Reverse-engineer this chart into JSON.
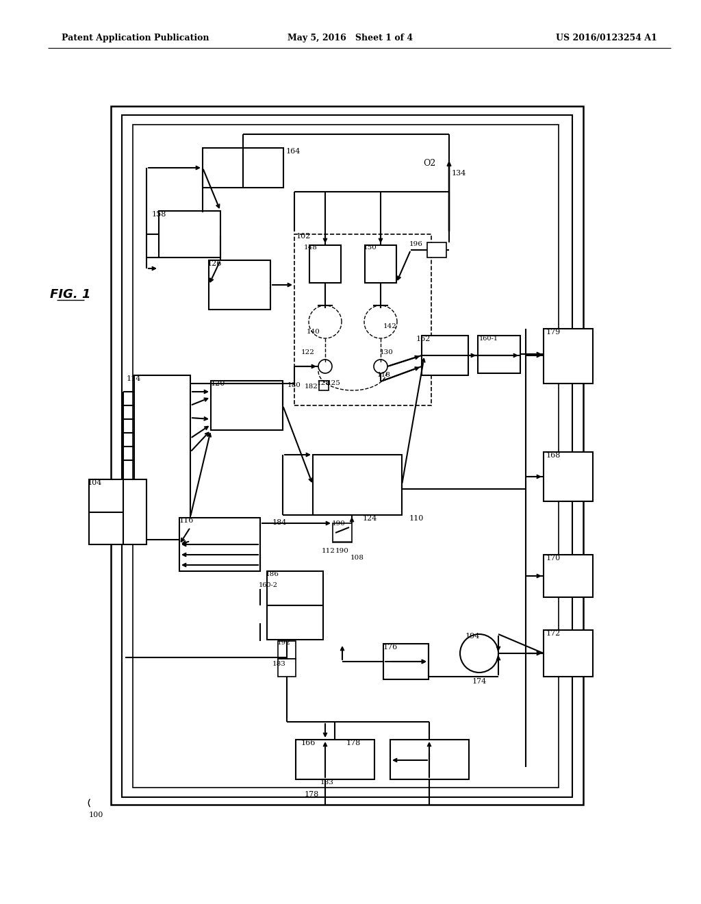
{
  "bg_color": "#ffffff",
  "header_left": "Patent Application Publication",
  "header_mid": "May 5, 2016   Sheet 1 of 4",
  "header_right": "US 2016/0123254 A1"
}
